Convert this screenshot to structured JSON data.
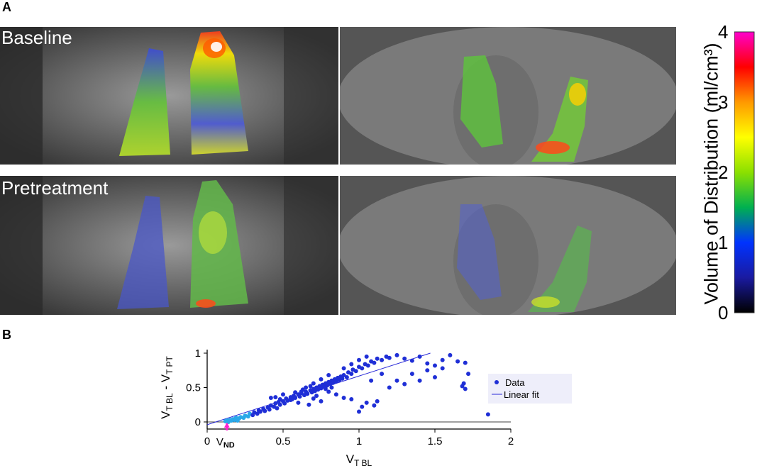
{
  "panels": {
    "a_label": "A",
    "b_label": "B",
    "top_label": "Baseline",
    "bottom_label": "Pretreatment"
  },
  "colorbar": {
    "title": "Volume of Distribution (ml/cm³)",
    "ticks": [
      "0",
      "1",
      "2",
      "3",
      "4"
    ],
    "colors": [
      "#000000",
      "#1a1aa0",
      "#0033ff",
      "#00b050",
      "#8be000",
      "#ffff00",
      "#ff9900",
      "#ff0000",
      "#ff00cc"
    ]
  },
  "chart_data": {
    "type": "scatter",
    "xlabel": "V",
    "xlabel_sub": "T BL",
    "ylabel": "V",
    "ylabel_sub1": "T BL",
    "ylabel_mid": " - V",
    "ylabel_sub2": "T PT",
    "xlim": [
      0,
      2
    ],
    "ylim": [
      0,
      1
    ],
    "xticks": [
      "0",
      "0.5",
      "1",
      "1.5",
      "2"
    ],
    "yticks": [
      "0",
      "0.5",
      "1"
    ],
    "vnd_label": "V",
    "vnd_sub": "ND",
    "vnd_value": 0.13,
    "legend": [
      "Data",
      "Linear fit"
    ],
    "fit": {
      "x": [
        0.0,
        1.47
      ],
      "y": [
        -0.04,
        1.0
      ]
    },
    "series": [
      {
        "name": "Data",
        "points": [
          [
            0.12,
            0.01
          ],
          [
            0.13,
            0.02
          ],
          [
            0.14,
            0.0
          ],
          [
            0.15,
            0.03
          ],
          [
            0.16,
            0.02
          ],
          [
            0.17,
            0.04
          ],
          [
            0.18,
            0.03
          ],
          [
            0.19,
            0.06
          ],
          [
            0.2,
            0.02
          ],
          [
            0.21,
            0.05
          ],
          [
            0.22,
            0.07
          ],
          [
            0.24,
            0.06
          ],
          [
            0.25,
            0.09
          ],
          [
            0.27,
            0.08
          ],
          [
            0.28,
            0.12
          ],
          [
            0.3,
            0.1
          ],
          [
            0.31,
            0.14
          ],
          [
            0.33,
            0.12
          ],
          [
            0.34,
            0.17
          ],
          [
            0.35,
            0.15
          ],
          [
            0.37,
            0.19
          ],
          [
            0.38,
            0.16
          ],
          [
            0.4,
            0.21
          ],
          [
            0.41,
            0.18
          ],
          [
            0.42,
            0.24
          ],
          [
            0.44,
            0.22
          ],
          [
            0.45,
            0.27
          ],
          [
            0.46,
            0.2
          ],
          [
            0.47,
            0.29
          ],
          [
            0.48,
            0.25
          ],
          [
            0.5,
            0.3
          ],
          [
            0.51,
            0.27
          ],
          [
            0.52,
            0.34
          ],
          [
            0.53,
            0.31
          ],
          [
            0.55,
            0.36
          ],
          [
            0.56,
            0.33
          ],
          [
            0.57,
            0.38
          ],
          [
            0.58,
            0.35
          ],
          [
            0.6,
            0.4
          ],
          [
            0.61,
            0.37
          ],
          [
            0.62,
            0.42
          ],
          [
            0.64,
            0.39
          ],
          [
            0.65,
            0.44
          ],
          [
            0.66,
            0.41
          ],
          [
            0.68,
            0.46
          ],
          [
            0.69,
            0.43
          ],
          [
            0.7,
            0.48
          ],
          [
            0.71,
            0.45
          ],
          [
            0.72,
            0.5
          ],
          [
            0.73,
            0.47
          ],
          [
            0.74,
            0.52
          ],
          [
            0.75,
            0.49
          ],
          [
            0.76,
            0.54
          ],
          [
            0.77,
            0.51
          ],
          [
            0.78,
            0.56
          ],
          [
            0.79,
            0.53
          ],
          [
            0.8,
            0.58
          ],
          [
            0.81,
            0.55
          ],
          [
            0.82,
            0.6
          ],
          [
            0.83,
            0.57
          ],
          [
            0.84,
            0.62
          ],
          [
            0.85,
            0.59
          ],
          [
            0.86,
            0.64
          ],
          [
            0.87,
            0.61
          ],
          [
            0.88,
            0.66
          ],
          [
            0.89,
            0.63
          ],
          [
            0.9,
            0.68
          ],
          [
            0.92,
            0.65
          ],
          [
            0.93,
            0.72
          ],
          [
            0.95,
            0.7
          ],
          [
            0.96,
            0.76
          ],
          [
            0.98,
            0.74
          ],
          [
            1.0,
            0.8
          ],
          [
            1.02,
            0.78
          ],
          [
            1.04,
            0.84
          ],
          [
            1.06,
            0.82
          ],
          [
            1.08,
            0.88
          ],
          [
            1.1,
            0.86
          ],
          [
            1.12,
            0.92
          ],
          [
            1.15,
            0.9
          ],
          [
            1.18,
            0.95
          ],
          [
            1.2,
            0.93
          ],
          [
            1.25,
            0.97
          ],
          [
            1.3,
            0.92
          ],
          [
            1.35,
            0.89
          ],
          [
            1.4,
            0.95
          ],
          [
            1.45,
            0.85
          ],
          [
            1.5,
            0.82
          ],
          [
            1.55,
            0.9
          ],
          [
            1.6,
            0.97
          ],
          [
            0.55,
            0.32
          ],
          [
            0.6,
            0.28
          ],
          [
            0.62,
            0.44
          ],
          [
            0.67,
            0.25
          ],
          [
            0.7,
            0.34
          ],
          [
            0.75,
            0.3
          ],
          [
            0.8,
            0.44
          ],
          [
            0.85,
            0.4
          ],
          [
            0.9,
            0.35
          ],
          [
            0.95,
            0.33
          ],
          [
            1.0,
            0.15
          ],
          [
            1.02,
            0.22
          ],
          [
            1.05,
            0.28
          ],
          [
            1.08,
            0.6
          ],
          [
            1.1,
            0.24
          ],
          [
            1.12,
            0.3
          ],
          [
            1.15,
            0.7
          ],
          [
            1.2,
            0.5
          ],
          [
            1.25,
            0.6
          ],
          [
            1.3,
            0.55
          ],
          [
            1.35,
            0.7
          ],
          [
            1.4,
            0.6
          ],
          [
            1.45,
            0.75
          ],
          [
            1.5,
            0.65
          ],
          [
            1.55,
            0.78
          ],
          [
            1.65,
            0.88
          ],
          [
            1.68,
            0.52
          ],
          [
            1.69,
            0.56
          ],
          [
            1.7,
            0.48
          ],
          [
            1.72,
            0.7
          ],
          [
            1.7,
            0.86
          ],
          [
            1.85,
            0.11
          ],
          [
            0.45,
            0.36
          ],
          [
            0.5,
            0.4
          ],
          [
            0.65,
            0.5
          ],
          [
            0.7,
            0.56
          ],
          [
            0.75,
            0.62
          ],
          [
            0.8,
            0.68
          ],
          [
            0.9,
            0.78
          ],
          [
            0.95,
            0.84
          ],
          [
            1.0,
            0.9
          ],
          [
            1.05,
            0.95
          ],
          [
            0.42,
            0.35
          ],
          [
            0.48,
            0.33
          ],
          [
            0.58,
            0.43
          ],
          [
            0.63,
            0.47
          ],
          [
            0.68,
            0.52
          ],
          [
            0.72,
            0.38
          ],
          [
            0.78,
            0.48
          ],
          [
            0.82,
            0.5
          ]
        ]
      }
    ]
  }
}
